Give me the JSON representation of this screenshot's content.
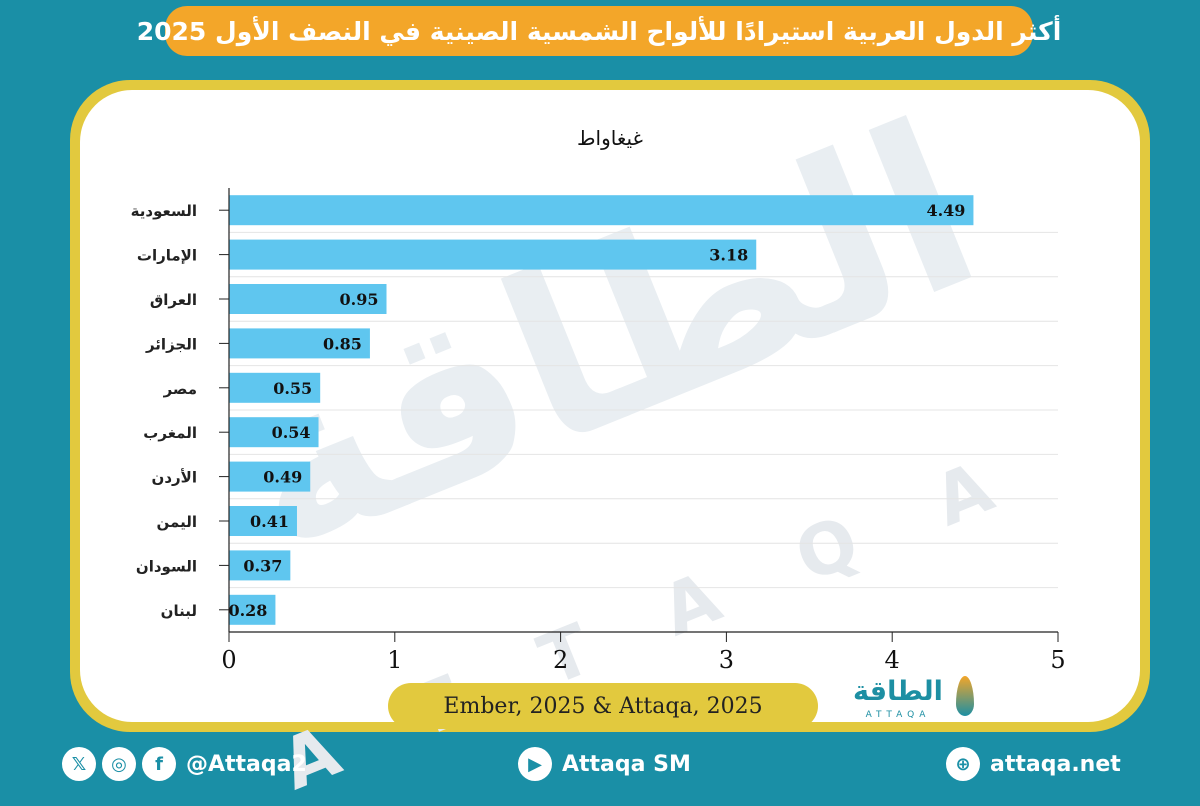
{
  "title": "أكثر الدول العربية استيرادًا للألواح الشمسية الصينية في النصف الأول 2025",
  "chart_data": {
    "type": "bar",
    "orientation": "horizontal",
    "unit_label": "غيغاواط",
    "categories": [
      "السعودية",
      "الإمارات",
      "العراق",
      "الجزائر",
      "مصر",
      "المغرب",
      "الأردن",
      "اليمن",
      "السودان",
      "لبنان"
    ],
    "values": [
      4.49,
      3.18,
      0.95,
      0.85,
      0.55,
      0.54,
      0.49,
      0.41,
      0.37,
      0.28
    ],
    "value_labels": [
      "4.49",
      "3.18",
      "0.95",
      "0.85",
      "0.55",
      "0.54",
      "0.49",
      "0.41",
      "0.37",
      "0.28"
    ],
    "xlim": [
      0,
      5
    ],
    "xticks": [
      "0",
      "1",
      "2",
      "3",
      "4",
      "5"
    ],
    "grid": true,
    "bar_color": "#5fc6ef"
  },
  "source": "Ember, 2025 & Attaqa, 2025",
  "logo": {
    "arabic": "الطاقة",
    "latin": "ATTAQA"
  },
  "watermark": {
    "arabic": "الطاقة",
    "latin": "ATTAQA"
  },
  "footer": {
    "social_handle": "@Attaqa2",
    "youtube": "Attaqa SM",
    "website": "attaqa.net"
  },
  "colors": {
    "background": "#1a8fa6",
    "title_banner": "#f3a629",
    "frame": "#e2c93e"
  }
}
